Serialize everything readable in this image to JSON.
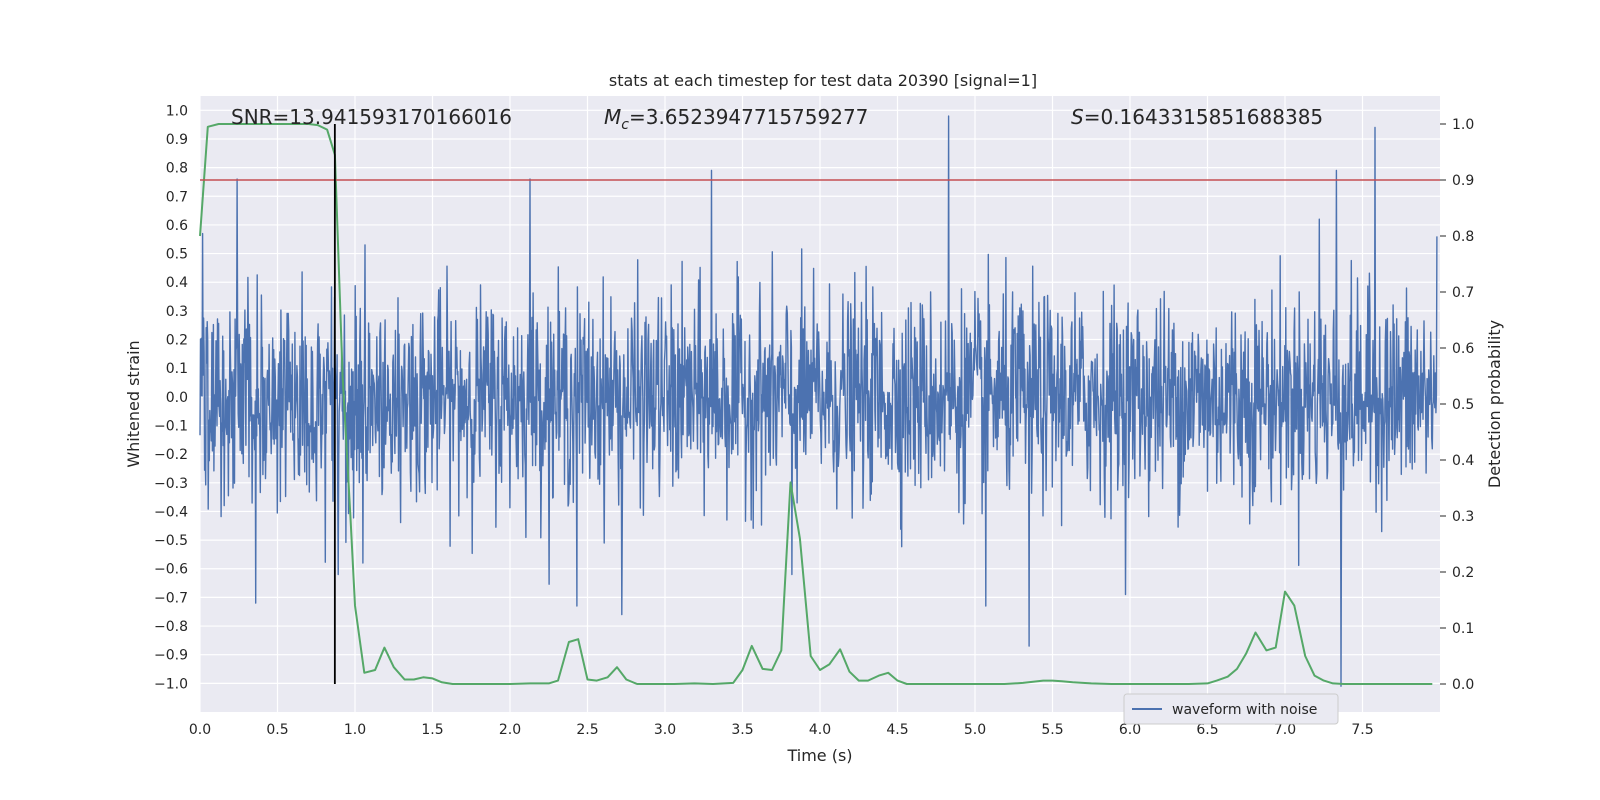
{
  "chart_data": {
    "type": "line",
    "title": "stats at each timestep for test data 20390 [signal=1]",
    "xlabel": "Time (s)",
    "ylabel_left": "Whitened strain",
    "ylabel_right": "Detection probability",
    "xlim": [
      0.0,
      8.0
    ],
    "ylim_left": [
      -1.1,
      1.05
    ],
    "ylim_right": [
      -0.05,
      1.05
    ],
    "x_ticks": [
      0.0,
      0.5,
      1.0,
      1.5,
      2.0,
      2.5,
      3.0,
      3.5,
      4.0,
      4.5,
      5.0,
      5.5,
      6.0,
      6.5,
      7.0,
      7.5
    ],
    "x_tick_labels": [
      "0.0",
      "0.5",
      "1.0",
      "1.5",
      "2.0",
      "2.5",
      "3.0",
      "3.5",
      "4.0",
      "4.5",
      "5.0",
      "5.5",
      "6.0",
      "6.5",
      "7.0",
      "7.5"
    ],
    "y_left_ticks": [
      -1.0,
      -0.9,
      -0.8,
      -0.7,
      -0.6,
      -0.5,
      -0.4,
      -0.3,
      -0.2,
      -0.1,
      0.0,
      0.1,
      0.2,
      0.3,
      0.4,
      0.5,
      0.6,
      0.7,
      0.8,
      0.9,
      1.0
    ],
    "y_left_tick_labels": [
      "−1.0",
      "−0.9",
      "−0.8",
      "−0.7",
      "−0.6",
      "−0.5",
      "−0.4",
      "−0.3",
      "−0.2",
      "−0.1",
      "0.0",
      "0.1",
      "0.2",
      "0.3",
      "0.4",
      "0.5",
      "0.6",
      "0.7",
      "0.8",
      "0.9",
      "1.0"
    ],
    "y_right_ticks": [
      0.0,
      0.1,
      0.2,
      0.3,
      0.4,
      0.5,
      0.6,
      0.7,
      0.8,
      0.9,
      1.0
    ],
    "y_right_tick_labels": [
      "0.0",
      "0.1",
      "0.2",
      "0.3",
      "0.4",
      "0.5",
      "0.6",
      "0.7",
      "0.8",
      "0.9",
      "1.0"
    ],
    "grid": true,
    "legend": {
      "placement": "lower-right",
      "entries": [
        "waveform with noise"
      ]
    },
    "annotations": {
      "snr": "SNR=13.941593170166016",
      "mc_symbol": "M",
      "mc_sub": "c",
      "mc_value": "=3.6523947715759277",
      "s_symbol": "S",
      "s_value": "=0.1643315851688385"
    },
    "threshold_right": 0.9,
    "event_time": 0.87,
    "waveform": {
      "name": "waveform with noise",
      "color": "#4c72b0",
      "envelope": 0.4,
      "spikes": [
        [
          0.24,
          0.76
        ],
        [
          0.36,
          -0.72
        ],
        [
          0.89,
          -0.62
        ],
        [
          1.05,
          -0.58
        ],
        [
          2.13,
          0.76
        ],
        [
          2.43,
          -0.73
        ],
        [
          2.72,
          -0.76
        ],
        [
          3.3,
          0.79
        ],
        [
          3.82,
          -0.62
        ],
        [
          4.83,
          0.98
        ],
        [
          5.07,
          -0.73
        ],
        [
          5.35,
          -0.87
        ],
        [
          5.97,
          -0.69
        ],
        [
          7.22,
          0.62
        ],
        [
          7.33,
          0.79
        ],
        [
          7.36,
          -1.01
        ],
        [
          7.58,
          0.94
        ],
        [
          7.98,
          0.56
        ]
      ]
    },
    "probability": {
      "color": "#55a868",
      "x": [
        0.0,
        0.05,
        0.12,
        0.2,
        0.3,
        0.4,
        0.5,
        0.6,
        0.7,
        0.76,
        0.82,
        0.87,
        0.92,
        0.97,
        1.0,
        1.06,
        1.13,
        1.19,
        1.25,
        1.32,
        1.38,
        1.44,
        1.5,
        1.56,
        1.63,
        1.75,
        1.88,
        2.0,
        2.13,
        2.25,
        2.31,
        2.38,
        2.44,
        2.5,
        2.56,
        2.63,
        2.69,
        2.75,
        2.82,
        2.94,
        3.06,
        3.19,
        3.31,
        3.44,
        3.5,
        3.56,
        3.63,
        3.69,
        3.75,
        3.81,
        3.87,
        3.94,
        4.0,
        4.06,
        4.13,
        4.19,
        4.25,
        4.31,
        4.38,
        4.44,
        4.5,
        4.56,
        4.69,
        4.81,
        4.94,
        5.06,
        5.19,
        5.31,
        5.44,
        5.5,
        5.56,
        5.63,
        5.75,
        5.88,
        6.0,
        6.13,
        6.25,
        6.38,
        6.5,
        6.56,
        6.63,
        6.69,
        6.75,
        6.81,
        6.88,
        6.94,
        7.0,
        7.06,
        7.13,
        7.19,
        7.25,
        7.31,
        7.38,
        7.5,
        7.63,
        7.75,
        7.88,
        7.95
      ],
      "y": [
        0.8,
        0.995,
        1.0,
        1.0,
        1.0,
        1.0,
        1.0,
        1.0,
        1.0,
        0.998,
        0.99,
        0.945,
        0.55,
        0.3,
        0.14,
        0.02,
        0.025,
        0.065,
        0.03,
        0.008,
        0.008,
        0.012,
        0.01,
        0.003,
        0.0,
        0.0,
        0.0,
        0.0,
        0.001,
        0.001,
        0.006,
        0.075,
        0.08,
        0.008,
        0.006,
        0.012,
        0.03,
        0.008,
        0.0,
        0.0,
        0.0,
        0.001,
        0.0,
        0.002,
        0.025,
        0.068,
        0.027,
        0.025,
        0.06,
        0.36,
        0.26,
        0.05,
        0.025,
        0.035,
        0.062,
        0.022,
        0.006,
        0.006,
        0.015,
        0.02,
        0.006,
        0.0,
        0.0,
        0.0,
        0.0,
        0.0,
        0.0,
        0.002,
        0.006,
        0.006,
        0.005,
        0.003,
        0.001,
        0.0,
        0.0,
        0.0,
        0.0,
        0.0,
        0.001,
        0.006,
        0.013,
        0.027,
        0.055,
        0.092,
        0.06,
        0.065,
        0.165,
        0.14,
        0.05,
        0.015,
        0.006,
        0.001,
        0.0,
        0.0,
        0.0,
        0.0,
        0.0,
        0.0
      ]
    },
    "colors": {
      "background": "#eaeaf2",
      "grid": "#ffffff",
      "threshold": "#c44e52",
      "event_line": "#000000"
    }
  }
}
